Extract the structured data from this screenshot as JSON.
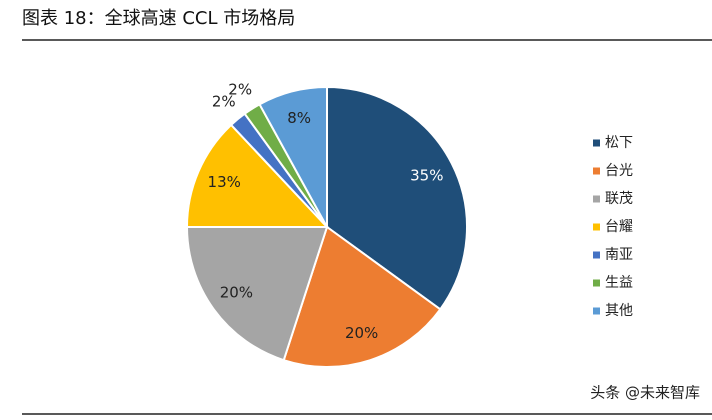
{
  "chart_data": {
    "type": "pie",
    "title": "图表 18：全球高速 CCL 市场格局",
    "categories": [
      "松下",
      "台光",
      "联茂",
      "台耀",
      "南亚",
      "生益",
      "其他"
    ],
    "values": [
      35,
      20,
      20,
      13,
      2,
      2,
      8
    ],
    "value_labels": [
      "35%",
      "20%",
      "20%",
      "13%",
      "2%",
      "2%",
      "8%"
    ],
    "colors": [
      "#1f4e79",
      "#ed7d31",
      "#a5a5a5",
      "#ffc000",
      "#4472c4",
      "#70ad47",
      "#5b9bd5"
    ],
    "legend": "right",
    "watermark": "头条 @未来智库"
  }
}
